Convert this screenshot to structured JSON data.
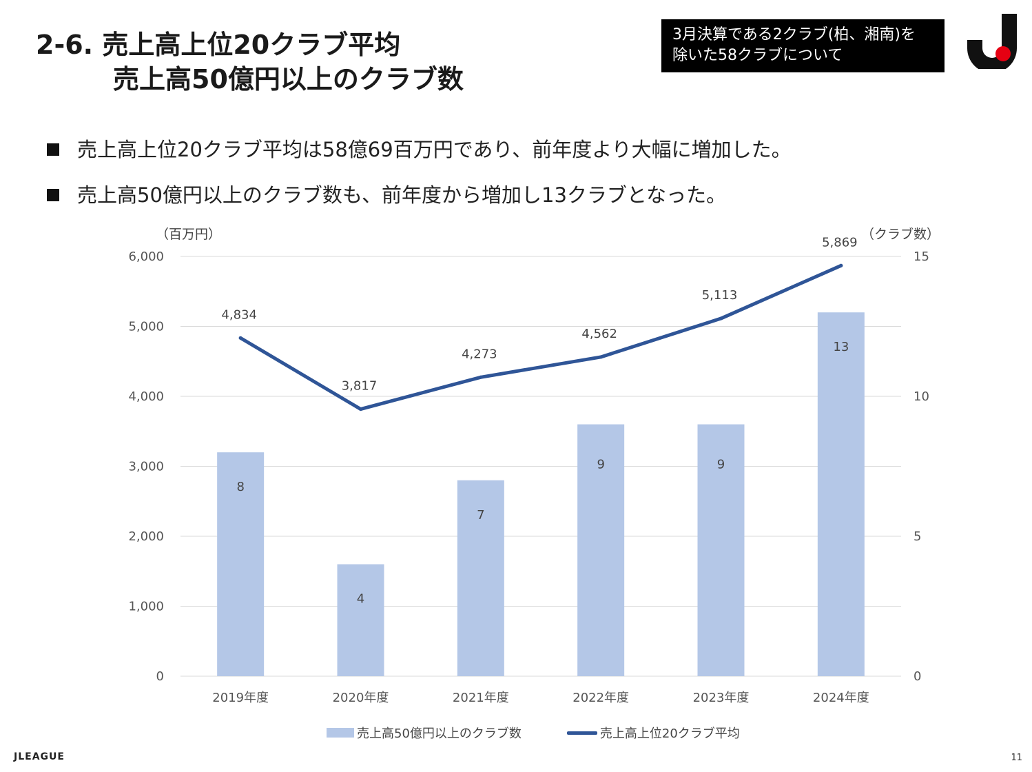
{
  "slide": {
    "title_line1": "2-6. 売上高上位20クラブ平均",
    "title_line2": "売上高50億円以上のクラブ数",
    "note_line1": "3月決算である2クラブ(柏、湘南)を",
    "note_line2": "除いた58クラブについて",
    "bullets": [
      "売上高上位20クラブ平均は58億69百万円であり、前年度より大幅に増加した。",
      "売上高50億円以上のクラブ数も、前年度から増加し13クラブとなった。"
    ],
    "footer_brand": "JLEAGUE",
    "page_number": "11"
  },
  "colors": {
    "bar": "#b4c7e7",
    "line": "#2f5597",
    "grid": "#d9d9d9",
    "logo_red": "#e60012"
  },
  "chart_data": {
    "type": "bar+line",
    "categories": [
      "2019年度",
      "2020年度",
      "2021年度",
      "2022年度",
      "2023年度",
      "2024年度"
    ],
    "series": [
      {
        "name": "売上高50億円以上のクラブ数",
        "type": "bar",
        "axis": "right",
        "values": [
          8,
          4,
          7,
          9,
          9,
          13
        ],
        "labels": [
          "8",
          "4",
          "7",
          "9",
          "9",
          "13"
        ]
      },
      {
        "name": "売上高上位20クラブ平均",
        "type": "line",
        "axis": "left",
        "values": [
          4834,
          3817,
          4273,
          4562,
          5113,
          5869
        ],
        "labels": [
          "4,834",
          "3,817",
          "4,273",
          "4,562",
          "5,113",
          "5,869"
        ]
      }
    ],
    "y_left": {
      "label": "（百万円）",
      "min": 0,
      "max": 6000,
      "ticks": [
        0,
        1000,
        2000,
        3000,
        4000,
        5000,
        6000
      ],
      "tick_labels": [
        "0",
        "1,000",
        "2,000",
        "3,000",
        "4,000",
        "5,000",
        "6,000"
      ]
    },
    "y_right": {
      "label": "（クラブ数）",
      "min": 0,
      "max": 15,
      "ticks": [
        0,
        5,
        10,
        15
      ],
      "tick_labels": [
        "0",
        "5",
        "10",
        "15"
      ]
    },
    "legend_position": "bottom",
    "grid": true
  }
}
